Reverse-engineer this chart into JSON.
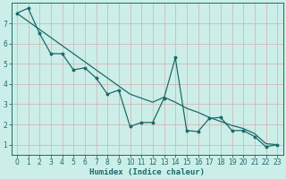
{
  "xlabel": "Humidex (Indice chaleur)",
  "background_color": "#cceee8",
  "grid_color": "#d4b8b8",
  "line_color": "#1a6b6b",
  "x_all": [
    0,
    1,
    2,
    3,
    4,
    5,
    6,
    7,
    8,
    9,
    10,
    11,
    12,
    13,
    14,
    15,
    16,
    17,
    18,
    19,
    20,
    21,
    22,
    23
  ],
  "y_curve": [
    7.5,
    7.75,
    6.5,
    5.5,
    5.5,
    4.7,
    4.8,
    4.3,
    3.5,
    3.7,
    1.9,
    2.1,
    2.1,
    3.3,
    5.3,
    1.7,
    1.65,
    2.3,
    2.35,
    1.7,
    1.7,
    1.4,
    0.9,
    1.0
  ],
  "y_linear": [
    7.5,
    7.1,
    6.7,
    6.3,
    5.9,
    5.5,
    5.1,
    4.7,
    4.3,
    3.9,
    3.5,
    3.3,
    3.1,
    3.35,
    3.1,
    2.8,
    2.6,
    2.35,
    2.15,
    1.95,
    1.8,
    1.55,
    1.05,
    1.0
  ],
  "ylim": [
    0.5,
    8.0
  ],
  "xlim": [
    -0.5,
    23.5
  ],
  "yticks": [
    1,
    2,
    3,
    4,
    5,
    6,
    7
  ],
  "xticks": [
    0,
    1,
    2,
    3,
    4,
    5,
    6,
    7,
    8,
    9,
    10,
    11,
    12,
    13,
    14,
    15,
    16,
    17,
    18,
    19,
    20,
    21,
    22,
    23
  ],
  "tick_fontsize": 5.5,
  "xlabel_fontsize": 6.5
}
